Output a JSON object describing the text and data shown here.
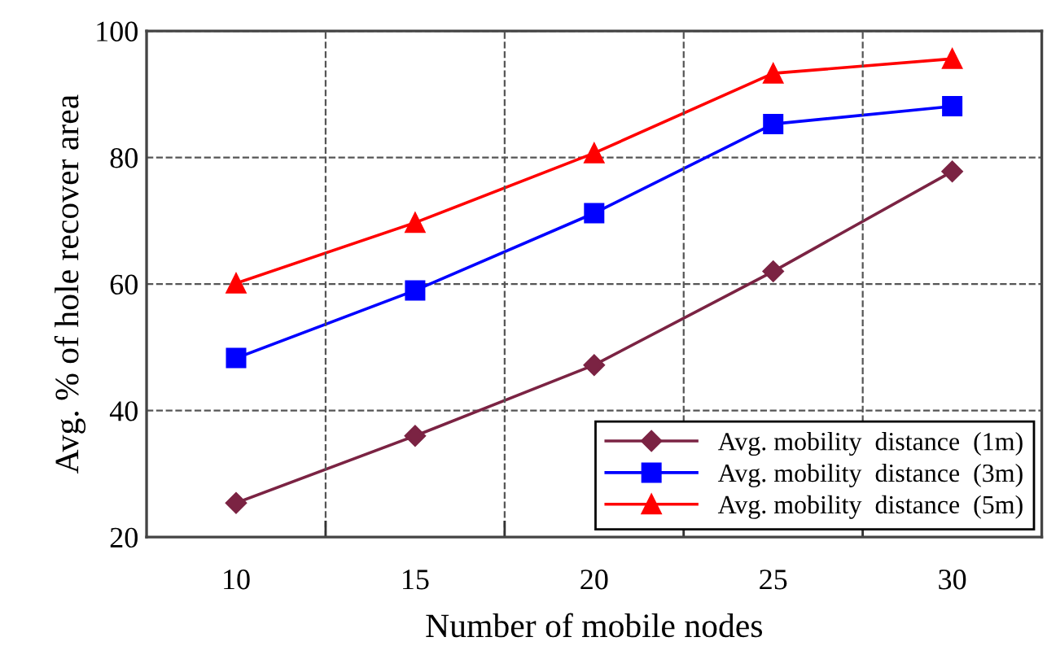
{
  "chart_data": {
    "type": "line",
    "xlabel": "Number of mobile nodes",
    "ylabel": "Avg. % of hole recover area",
    "categories": [
      "10",
      "15",
      "20",
      "25",
      "30"
    ],
    "series": [
      {
        "name": "Avg. mobility  distance  (1m)",
        "color": "#7b2343",
        "marker": "diamond",
        "values": [
          25.4,
          36,
          47.2,
          62,
          77.8
        ]
      },
      {
        "name": "Avg. mobility  distance  (3m)",
        "color": "#0000ff",
        "marker": "square",
        "values": [
          48.3,
          59,
          71.2,
          85.3,
          88.1
        ]
      },
      {
        "name": "Avg. mobility  distance  (5m)",
        "color": "#ff0000",
        "marker": "triangle",
        "values": [
          60.1,
          69.7,
          80.7,
          93.3,
          95.6
        ]
      }
    ],
    "ylim": [
      20,
      100
    ],
    "yticks": [
      20,
      40,
      60,
      80,
      100
    ],
    "grid": true,
    "legend": "bottom right",
    "line_style": "solid"
  }
}
